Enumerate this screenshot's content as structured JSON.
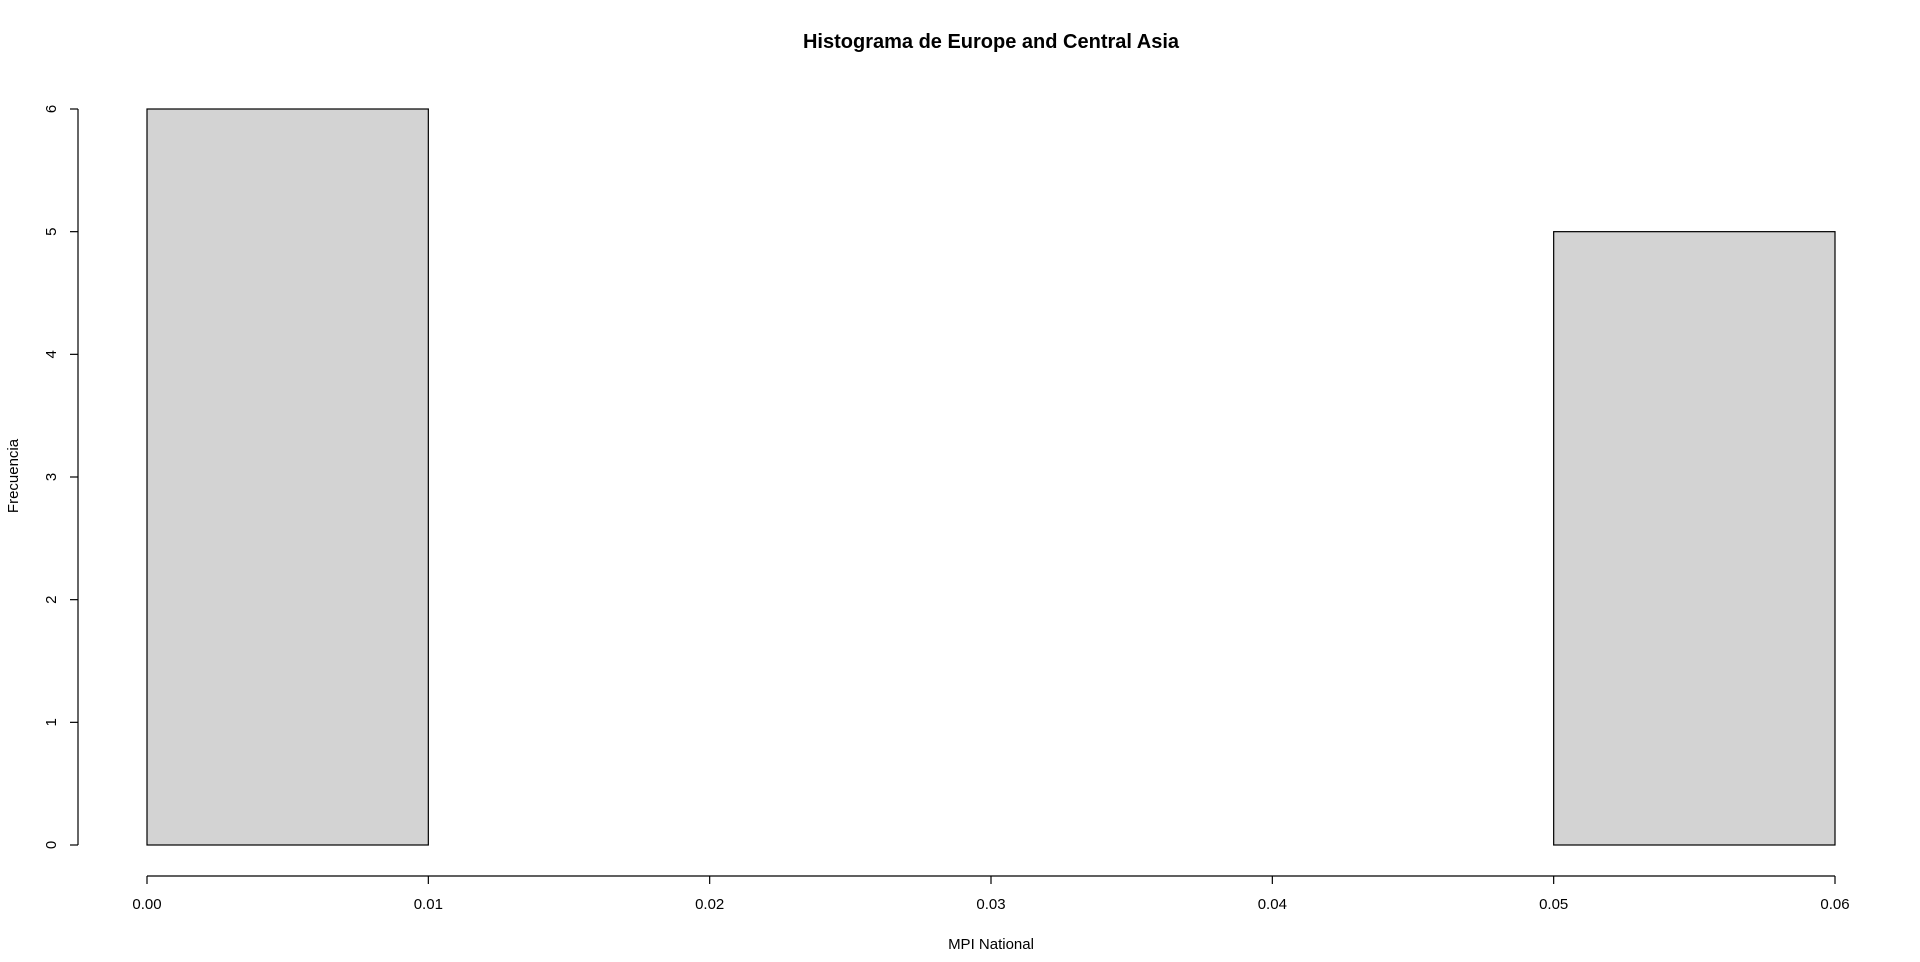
{
  "chart_data": {
    "type": "bar",
    "subtype": "histogram",
    "title": "Histograma de Europe and Central Asia",
    "xlabel": "MPI National",
    "ylabel": "Frecuencia",
    "bins": [
      {
        "from": 0.0,
        "to": 0.01,
        "count": 6
      },
      {
        "from": 0.01,
        "to": 0.02,
        "count": 0
      },
      {
        "from": 0.02,
        "to": 0.03,
        "count": 0
      },
      {
        "from": 0.03,
        "to": 0.04,
        "count": 0
      },
      {
        "from": 0.04,
        "to": 0.05,
        "count": 0
      },
      {
        "from": 0.05,
        "to": 0.06,
        "count": 5
      }
    ],
    "xlim": [
      0.0,
      0.06
    ],
    "ylim": [
      0,
      6
    ],
    "x_ticks": [
      "0.00",
      "0.01",
      "0.02",
      "0.03",
      "0.04",
      "0.05",
      "0.06"
    ],
    "y_ticks": [
      "0",
      "1",
      "2",
      "3",
      "4",
      "5",
      "6"
    ],
    "grid": false,
    "bar_color": "#d3d3d3",
    "border_color": "#000000"
  }
}
